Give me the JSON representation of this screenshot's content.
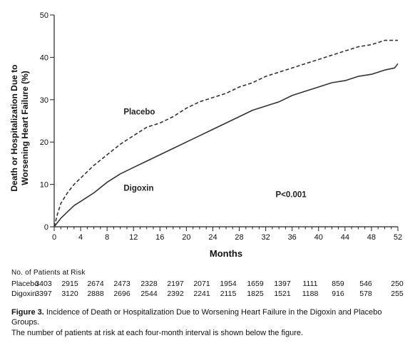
{
  "chart_data": {
    "type": "line",
    "title": "",
    "xlabel": "Months",
    "ylabel": "Death or Hospitalization Due to Worsening Heart Failure (%)",
    "ylabel_lines": [
      "Death or Hospitalization Due to",
      "Worsening Heart Failure (%)"
    ],
    "xlim": [
      0,
      52
    ],
    "ylim": [
      0,
      50
    ],
    "xticks": [
      0,
      4,
      8,
      12,
      16,
      20,
      24,
      28,
      32,
      36,
      40,
      44,
      48,
      52
    ],
    "yticks": [
      0,
      10,
      20,
      30,
      40,
      50
    ],
    "grid": false,
    "series": [
      {
        "name": "Placebo",
        "style": "dashed",
        "x": [
          0,
          0.5,
          1,
          2,
          3,
          4,
          5,
          6,
          8,
          10,
          12,
          14,
          16,
          18,
          20,
          22,
          24,
          26,
          28,
          30,
          32,
          34,
          36,
          38,
          40,
          42,
          44,
          46,
          48,
          50,
          52
        ],
        "y": [
          0,
          3,
          5.5,
          8,
          10,
          11.5,
          13,
          14.5,
          17,
          19.5,
          21.5,
          23.5,
          24.5,
          26,
          28,
          29.5,
          30.5,
          31.5,
          33,
          34,
          35.5,
          36.5,
          37.5,
          38.5,
          39.5,
          40.5,
          41.5,
          42.5,
          43,
          44,
          44
        ]
      },
      {
        "name": "Digoxin",
        "style": "solid",
        "x": [
          0,
          1,
          2,
          3,
          4,
          6,
          8,
          10,
          12,
          14,
          16,
          18,
          20,
          22,
          24,
          26,
          28,
          30,
          32,
          34,
          36,
          38,
          40,
          42,
          44,
          46,
          48,
          50,
          51.5,
          52
        ],
        "y": [
          0,
          2,
          3.5,
          5,
          6,
          8,
          10.5,
          12.5,
          14,
          15.5,
          17,
          18.5,
          20,
          21.5,
          23,
          24.5,
          26,
          27.5,
          28.5,
          29.5,
          31,
          32,
          33,
          34,
          34.5,
          35.5,
          36,
          37,
          37.5,
          38.5
        ]
      }
    ],
    "annotations": [
      {
        "text": "Placebo",
        "x": 10.5,
        "y": 26.5
      },
      {
        "text": "Digoxin",
        "x": 10.5,
        "y": 8.5
      },
      {
        "text": "P<0.001",
        "x": 33.5,
        "y": 7
      }
    ]
  },
  "risk_table": {
    "title": "No. of Patients at Risk",
    "rows": [
      {
        "name": "Placebo",
        "values": [
          "3403",
          "2915",
          "2674",
          "2473",
          "2328",
          "2197",
          "2071",
          "1954",
          "1659",
          "1397",
          "1111",
          "859",
          "546",
          "250"
        ]
      },
      {
        "name": "Digoxin",
        "values": [
          "3397",
          "3120",
          "2888",
          "2696",
          "2544",
          "2392",
          "2241",
          "2115",
          "1825",
          "1521",
          "1188",
          "916",
          "578",
          "255"
        ]
      }
    ]
  },
  "caption": {
    "label": "Figure 3.",
    "text": "Incidence of Death or Hospitalization Due to Worsening Heart Failure in the Digoxin and Placebo Groups.",
    "note": "The number of patients at risk at each four-month interval is shown below the figure."
  }
}
